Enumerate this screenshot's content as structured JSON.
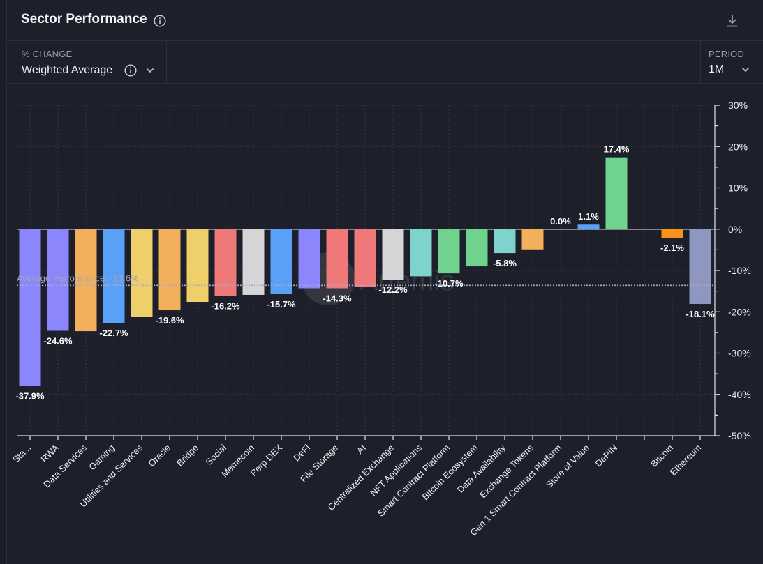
{
  "header": {
    "title": "Sector Performance"
  },
  "controls": {
    "change_label": "% CHANGE",
    "change_value": "Weighted Average",
    "period_label": "PERIOD",
    "period_value": "1M"
  },
  "icons": {
    "info": "info-icon",
    "download": "download-icon",
    "chevron": "chevron-down-icon"
  },
  "colors": {
    "background": "#1d1f2a",
    "purple": "#8b86fb",
    "orange": "#f2b05c",
    "blue": "#5aa0f7",
    "yellow": "#efcf6a",
    "red": "#ef7878",
    "gray": "#d5d5d8",
    "teal": "#7ed3cd",
    "green": "#6fd38e",
    "bright_orange": "#f7931a",
    "slate": "#8e97c0"
  },
  "chart_data": {
    "type": "bar",
    "title": "Sector Performance",
    "ylabel": "% CHANGE",
    "ylim": [
      -50,
      30
    ],
    "yticks": [
      30,
      20,
      10,
      0,
      -10,
      -20,
      -30,
      -40,
      -50
    ],
    "ytick_labels": [
      "30%",
      "20%",
      "10%",
      "0%",
      "-10%",
      "-20%",
      "-30%",
      "-40%",
      "-50%"
    ],
    "grid": true,
    "average": -13.6,
    "average_label": "Average Performance: -13.6%",
    "watermark": "Artemis",
    "categories": [
      "Sta...",
      "RWA",
      "Data Services",
      "Gaming",
      "Utilities and Services",
      "Oracle",
      "Bridge",
      "Social",
      "Memecoin",
      "Perp DEX",
      "DeFi",
      "File Storage",
      "AI",
      "Centralized Exchange",
      "NFT Applications",
      "Smart Contract Platform",
      "Bitcoin Ecosystem",
      "Data Availability",
      "Exchange Tokens",
      "Gen 1 Smart Contract Platform",
      "Store of Value",
      "DePIN",
      "",
      "Bitcoin",
      "Ethereum"
    ],
    "values": [
      -37.9,
      -24.6,
      -24.7,
      -22.7,
      -21.2,
      -19.6,
      -17.6,
      -16.2,
      -15.9,
      -15.7,
      -14.3,
      -14.3,
      -14.0,
      -12.2,
      -11.4,
      -10.7,
      -9.0,
      -5.8,
      -4.9,
      0.0,
      1.1,
      17.4,
      null,
      -2.1,
      -18.1
    ],
    "data_labels": [
      "-37.9%",
      "-24.6%",
      "",
      "-22.7%",
      "",
      "-19.6%",
      "",
      "-16.2%",
      "",
      "-15.7%",
      "",
      "-14.3%",
      "",
      "-12.2%",
      "",
      "-10.7%",
      "",
      "-5.8%",
      "",
      "0.0%",
      "1.1%",
      "17.4%",
      "",
      "-2.1%",
      "-18.1%"
    ],
    "bar_colors": [
      "#8b86fb",
      "#8b86fb",
      "#f2b05c",
      "#5aa0f7",
      "#efcf6a",
      "#f2b05c",
      "#efcf6a",
      "#ef7878",
      "#d5d5d8",
      "#5aa0f7",
      "#8b86fb",
      "#ef7878",
      "#ef7878",
      "#d5d5d8",
      "#7ed3cd",
      "#6fd38e",
      "#6fd38e",
      "#7ed3cd",
      "#f2b05c",
      "#5aa0f7",
      "#5aa0f7",
      "#6fd38e",
      "#1d1f2a",
      "#f7931a",
      "#8e97c0"
    ]
  }
}
